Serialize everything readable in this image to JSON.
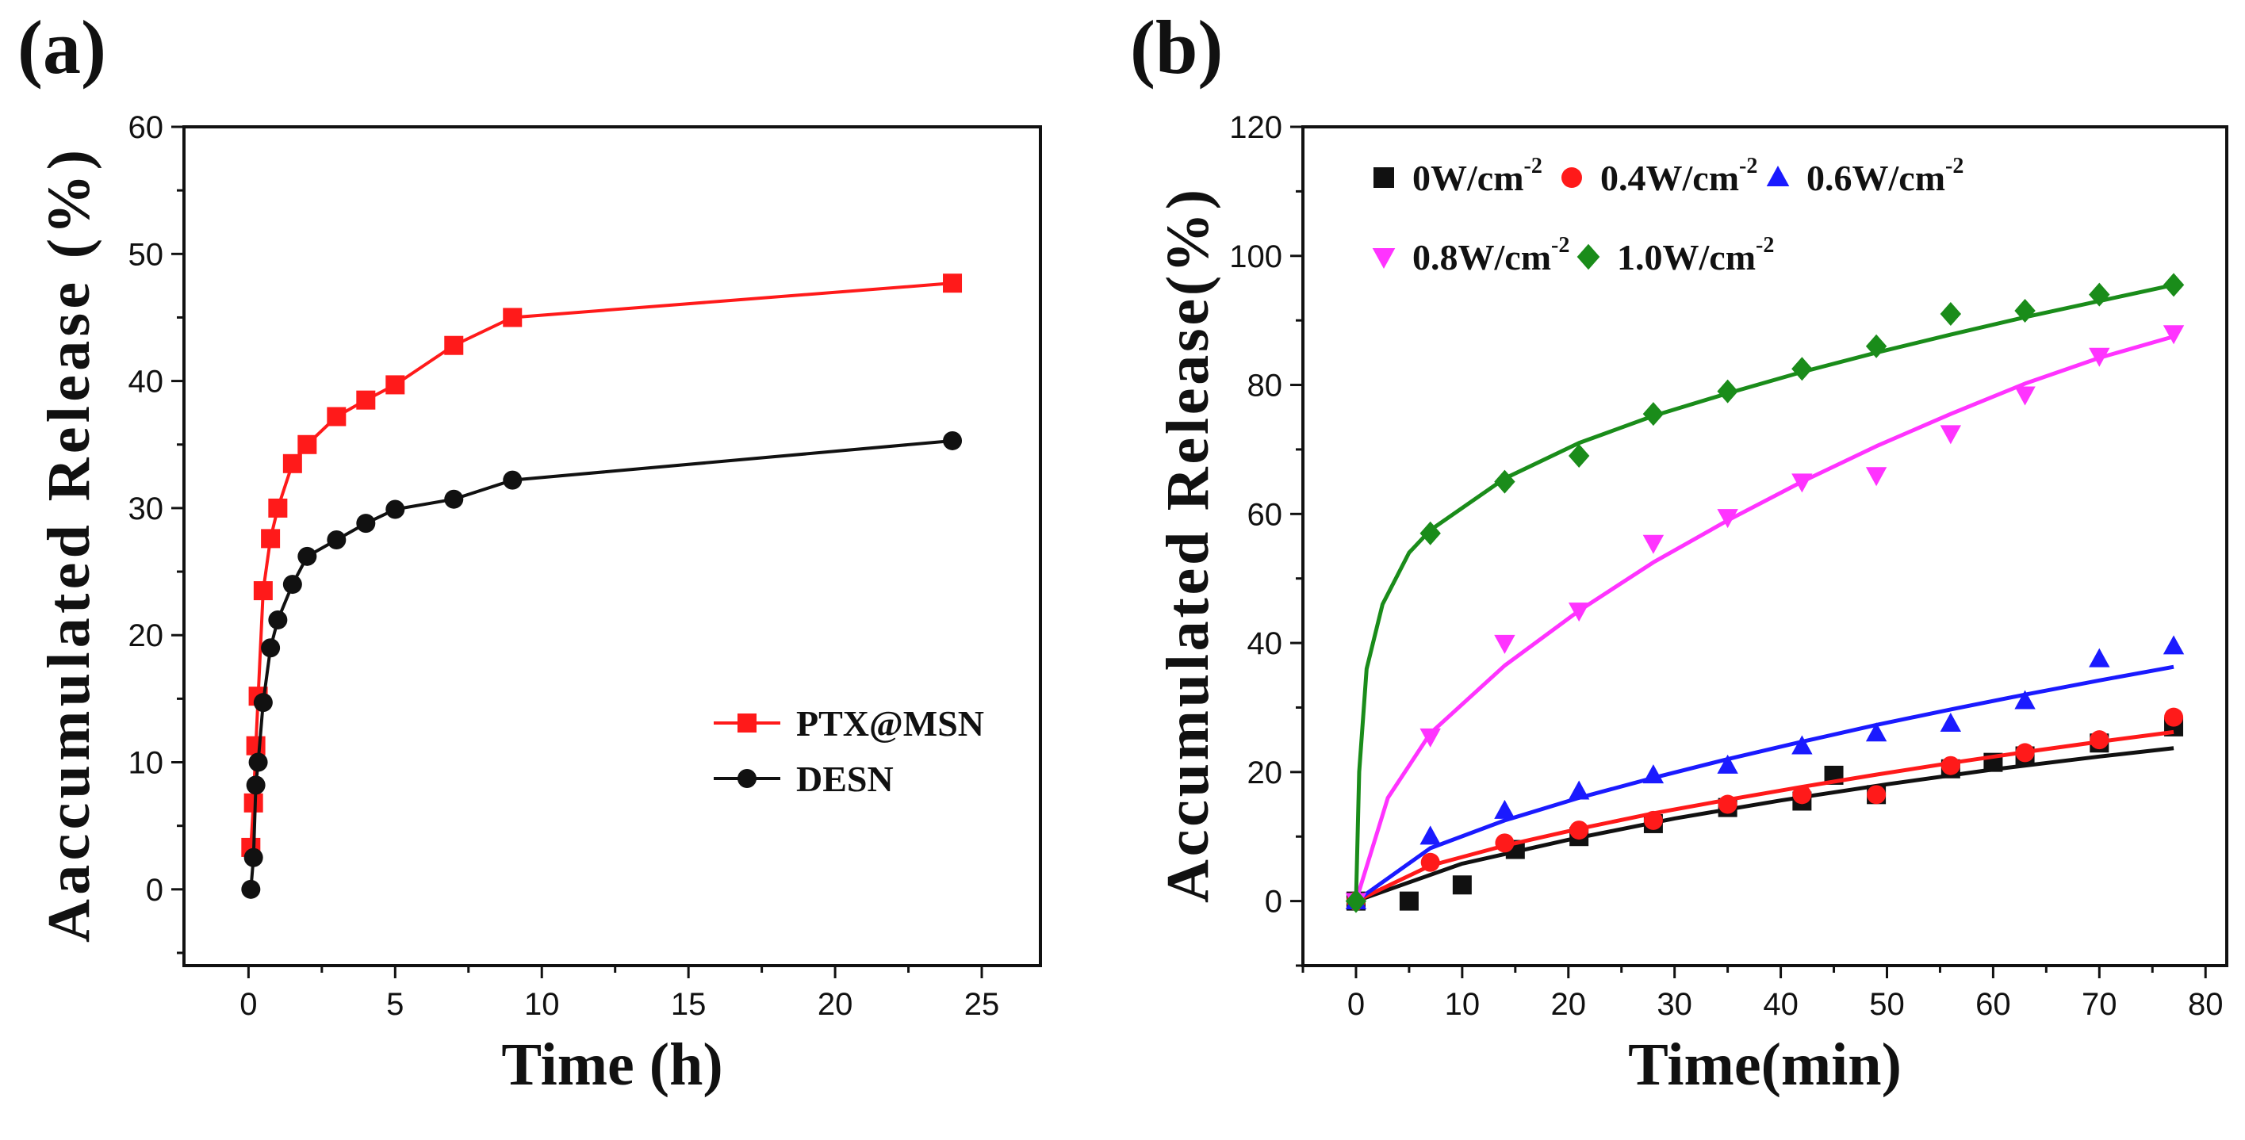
{
  "chart_data": [
    {
      "panel_label": "(a)",
      "type": "line",
      "xlabel": "Time (h)",
      "ylabel": "Aaccumulated Release (%)",
      "xlim": [
        -2.2,
        27
      ],
      "ylim": [
        -6,
        60
      ],
      "xticks": [
        0,
        5,
        10,
        15,
        20,
        25
      ],
      "yticks": [
        0,
        10,
        20,
        30,
        40,
        50,
        60
      ],
      "legend_position": "center-right",
      "series": [
        {
          "name": "PTX@MSN",
          "color": "#ff1a1a",
          "marker": "square",
          "x": [
            0.08,
            0.17,
            0.25,
            0.33,
            0.5,
            0.75,
            1,
            1.5,
            2,
            3,
            4,
            5,
            7,
            9,
            24
          ],
          "y": [
            3.3,
            6.8,
            11.3,
            15.2,
            23.5,
            27.6,
            30,
            33.5,
            35,
            37.2,
            38.5,
            39.7,
            42.8,
            45,
            47.7
          ]
        },
        {
          "name": "DESN",
          "color": "#111111",
          "marker": "circle",
          "x": [
            0.08,
            0.17,
            0.25,
            0.33,
            0.5,
            0.75,
            1,
            1.5,
            2,
            3,
            4,
            5,
            7,
            9,
            24
          ],
          "y": [
            0,
            2.5,
            8.2,
            10,
            14.7,
            19,
            21.2,
            24,
            26.2,
            27.5,
            28.8,
            29.9,
            30.7,
            32.2,
            35.3
          ]
        }
      ]
    },
    {
      "panel_label": "(b)",
      "type": "scatter",
      "xlabel": "Time(min)",
      "ylabel": "Accumulated Release(%)",
      "xlim": [
        -5,
        82
      ],
      "ylim": [
        -10,
        120
      ],
      "xticks": [
        0,
        10,
        20,
        30,
        40,
        50,
        60,
        70,
        80
      ],
      "yticks": [
        0,
        20,
        40,
        60,
        80,
        100,
        120
      ],
      "legend_position": "top-left",
      "series": [
        {
          "name": "0W/cm",
          "sup": "-2",
          "color": "#111111",
          "marker": "square",
          "x": [
            0,
            5,
            10,
            15,
            21,
            28,
            35,
            42,
            45,
            49,
            56,
            60,
            63,
            70,
            77
          ],
          "y": [
            0,
            0,
            2.5,
            8,
            10,
            12,
            14.5,
            15.5,
            19.5,
            16.5,
            20.5,
            21.5,
            22.5,
            24.5,
            27
          ],
          "fit": [
            [
              0,
              0
            ],
            [
              10,
              5.8
            ],
            [
              20,
              9.5
            ],
            [
              30,
              12.8
            ],
            [
              40,
              15.6
            ],
            [
              50,
              18.1
            ],
            [
              60,
              20.4
            ],
            [
              70,
              22.4
            ],
            [
              77,
              23.7
            ]
          ]
        },
        {
          "name": "0.4W/cm",
          "sup": "-2",
          "color": "#ff1a1a",
          "marker": "circle",
          "x": [
            0,
            7,
            14,
            21,
            28,
            35,
            42,
            49,
            56,
            63,
            70,
            77
          ],
          "y": [
            0,
            6,
            9,
            11,
            12.5,
            15,
            16.5,
            16.5,
            21,
            23,
            25,
            28.5
          ],
          "fit": [
            [
              0,
              0
            ],
            [
              7,
              5.5
            ],
            [
              14,
              8.6
            ],
            [
              21,
              11.2
            ],
            [
              28,
              13.6
            ],
            [
              35,
              15.7
            ],
            [
              42,
              17.7
            ],
            [
              49,
              19.6
            ],
            [
              56,
              21.4
            ],
            [
              63,
              23.1
            ],
            [
              70,
              24.7
            ],
            [
              77,
              26.2
            ]
          ]
        },
        {
          "name": "0.6W/cm",
          "sup": "-2",
          "color": "#1a1aff",
          "marker": "triangle-up",
          "x": [
            0,
            7,
            14,
            21,
            28,
            35,
            42,
            49,
            56,
            63,
            70,
            77
          ],
          "y": [
            0,
            10,
            14,
            17,
            19.5,
            21,
            24,
            26,
            27.5,
            31,
            37.5,
            39.5
          ],
          "fit": [
            [
              0,
              0
            ],
            [
              7,
              8.2
            ],
            [
              14,
              12.5
            ],
            [
              21,
              16
            ],
            [
              28,
              19.1
            ],
            [
              35,
              22
            ],
            [
              42,
              24.7
            ],
            [
              49,
              27.3
            ],
            [
              56,
              29.7
            ],
            [
              63,
              32
            ],
            [
              70,
              34.2
            ],
            [
              77,
              36.3
            ]
          ]
        },
        {
          "name": "0.8W/cm",
          "sup": "-2",
          "color": "#ff33ff",
          "marker": "triangle-down",
          "x": [
            0,
            7,
            14,
            21,
            28,
            35,
            42,
            49,
            56,
            63,
            70,
            77
          ],
          "y": [
            0,
            25.5,
            40,
            45,
            55.5,
            59.5,
            65,
            66,
            72.5,
            78.5,
            84.5,
            88
          ],
          "fit": [
            [
              0,
              0
            ],
            [
              3,
              16
            ],
            [
              7,
              26
            ],
            [
              14,
              36.5
            ],
            [
              21,
              45
            ],
            [
              28,
              52.5
            ],
            [
              35,
              59
            ],
            [
              42,
              65
            ],
            [
              49,
              70.5
            ],
            [
              56,
              75.5
            ],
            [
              63,
              80.2
            ],
            [
              70,
              84.2
            ],
            [
              77,
              87.5
            ]
          ]
        },
        {
          "name": "1.0W/cm",
          "sup": "-2",
          "color": "#1a8c1a",
          "marker": "diamond",
          "x": [
            0,
            7,
            14,
            21,
            28,
            35,
            42,
            49,
            56,
            63,
            70,
            77
          ],
          "y": [
            0,
            57,
            65,
            69,
            75.5,
            79,
            82.5,
            86,
            91,
            91.5,
            94,
            95.5
          ],
          "fit": [
            [
              0,
              0
            ],
            [
              0.3,
              20
            ],
            [
              1,
              36
            ],
            [
              2.5,
              46
            ],
            [
              5,
              54
            ],
            [
              7,
              57.5
            ],
            [
              14,
              65.5
            ],
            [
              21,
              71
            ],
            [
              28,
              75.2
            ],
            [
              35,
              78.7
            ],
            [
              42,
              82
            ],
            [
              49,
              85
            ],
            [
              56,
              87.8
            ],
            [
              63,
              90.5
            ],
            [
              70,
              93
            ],
            [
              77,
              95.5
            ]
          ]
        }
      ]
    }
  ]
}
